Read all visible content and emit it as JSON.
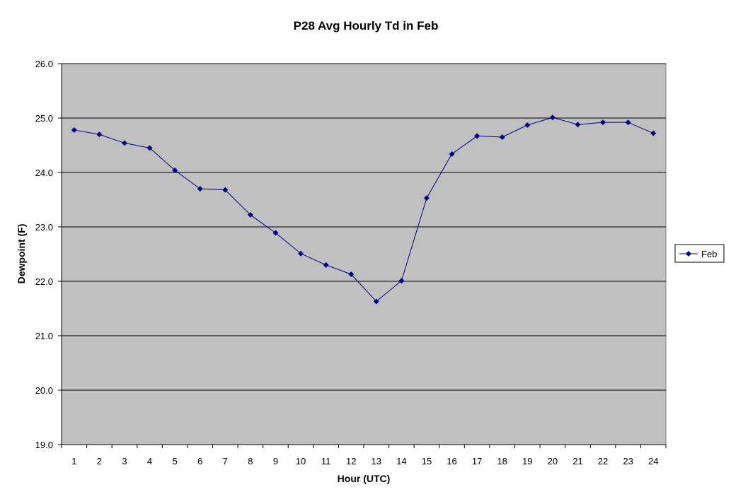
{
  "chart_data": {
    "type": "line",
    "title": "P28 Avg Hourly Td in Feb",
    "xlabel": "Hour (UTC)",
    "ylabel": "Dewpoint (F)",
    "ylim": [
      19.0,
      26.0
    ],
    "y_ticks": [
      "19.0",
      "20.0",
      "21.0",
      "22.0",
      "23.0",
      "24.0",
      "25.0",
      "26.0"
    ],
    "y_tick_values": [
      19,
      20,
      21,
      22,
      23,
      24,
      25,
      26
    ],
    "grid": true,
    "legend_position": "right",
    "plot_background": "#c0c0c0",
    "series_color": "#000080",
    "categories": [
      "1",
      "2",
      "3",
      "4",
      "5",
      "6",
      "7",
      "8",
      "9",
      "10",
      "11",
      "12",
      "13",
      "14",
      "15",
      "16",
      "17",
      "18",
      "19",
      "20",
      "21",
      "22",
      "23",
      "24"
    ],
    "series": [
      {
        "name": "Feb",
        "values": [
          24.78,
          24.7,
          24.54,
          24.45,
          24.04,
          23.7,
          23.68,
          23.22,
          22.89,
          22.51,
          22.3,
          22.13,
          21.63,
          22.01,
          23.53,
          24.34,
          24.67,
          24.65,
          24.87,
          25.01,
          24.88,
          24.92,
          24.92,
          24.72
        ]
      }
    ]
  }
}
